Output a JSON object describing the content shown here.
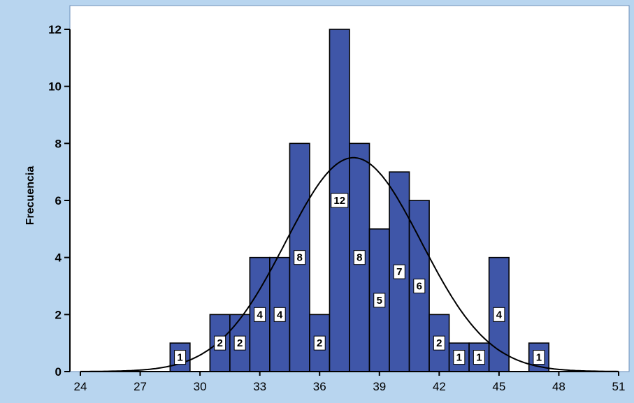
{
  "chart_data": {
    "type": "bar",
    "ylabel": "Frecuencia",
    "xlabel": "",
    "xlim": [
      24,
      51
    ],
    "ylim": [
      0,
      12
    ],
    "x_ticks": [
      "24",
      "27",
      "30",
      "33",
      "36",
      "39",
      "42",
      "45",
      "48",
      "51"
    ],
    "x_tick_values": [
      24,
      27,
      30,
      33,
      36,
      39,
      42,
      45,
      48,
      51
    ],
    "y_ticks": [
      "0",
      "2",
      "4",
      "6",
      "8",
      "10",
      "12"
    ],
    "y_tick_values": [
      0,
      2,
      4,
      6,
      8,
      10,
      12
    ],
    "grid": false,
    "bin_width": 1,
    "bins": [
      {
        "center": 29,
        "count": 1
      },
      {
        "center": 31,
        "count": 2
      },
      {
        "center": 32,
        "count": 2
      },
      {
        "center": 33,
        "count": 4
      },
      {
        "center": 34,
        "count": 4
      },
      {
        "center": 35,
        "count": 8
      },
      {
        "center": 36,
        "count": 2
      },
      {
        "center": 37,
        "count": 12
      },
      {
        "center": 38,
        "count": 8
      },
      {
        "center": 39,
        "count": 5
      },
      {
        "center": 40,
        "count": 7
      },
      {
        "center": 41,
        "count": 6
      },
      {
        "center": 42,
        "count": 2
      },
      {
        "center": 43,
        "count": 1
      },
      {
        "center": 44,
        "count": 1
      },
      {
        "center": 45,
        "count": 4
      },
      {
        "center": 47,
        "count": 1
      }
    ],
    "normal_curve": {
      "mean": 37.7,
      "sd": 3.4,
      "n": 70,
      "peak": 7.5
    },
    "colors": {
      "bar_fill": "#3f56a8",
      "bar_stroke": "#000000",
      "curve": "#000000",
      "background": "#b8d5ef",
      "plot_background": "#ffffff"
    }
  }
}
